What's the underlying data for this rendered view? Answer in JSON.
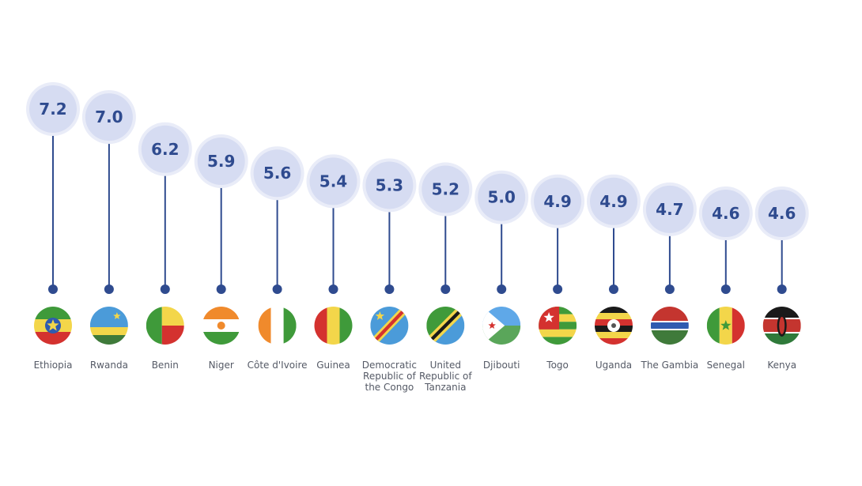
{
  "chart_data": {
    "type": "lollipop",
    "title": "",
    "categories": [
      "Ethiopia",
      "Rwanda",
      "Benin",
      "Niger",
      "Côte d'Ivoire",
      "Guinea",
      "Democratic Republic of the Congo",
      "United Republic of Tanzania",
      "Djibouti",
      "Togo",
      "Uganda",
      "The Gambia",
      "Senegal",
      "Kenya"
    ],
    "labels": [
      "7.2",
      "7.0",
      "6.2",
      "5.9",
      "5.6",
      "5.4",
      "5.3",
      "5.2",
      "5.0",
      "4.9",
      "4.9",
      "4.7",
      "4.6",
      "4.6"
    ],
    "values": [
      7.2,
      7.0,
      6.2,
      5.9,
      5.6,
      5.4,
      5.3,
      5.2,
      5.0,
      4.9,
      4.9,
      4.7,
      4.6,
      4.6
    ],
    "colors": {
      "bubble": "#d6dcf2",
      "bubble_ring": "#e9ecf8",
      "stem": "#2f4b8f",
      "text": "#2f4b8f"
    },
    "icons": [
      "ethiopia-flag-icon",
      "rwanda-flag-icon",
      "benin-flag-icon",
      "niger-flag-icon",
      "cote-divoire-flag-icon",
      "guinea-flag-icon",
      "drc-flag-icon",
      "tanzania-flag-icon",
      "djibouti-flag-icon",
      "togo-flag-icon",
      "uganda-flag-icon",
      "gambia-flag-icon",
      "senegal-flag-icon",
      "kenya-flag-icon"
    ]
  }
}
